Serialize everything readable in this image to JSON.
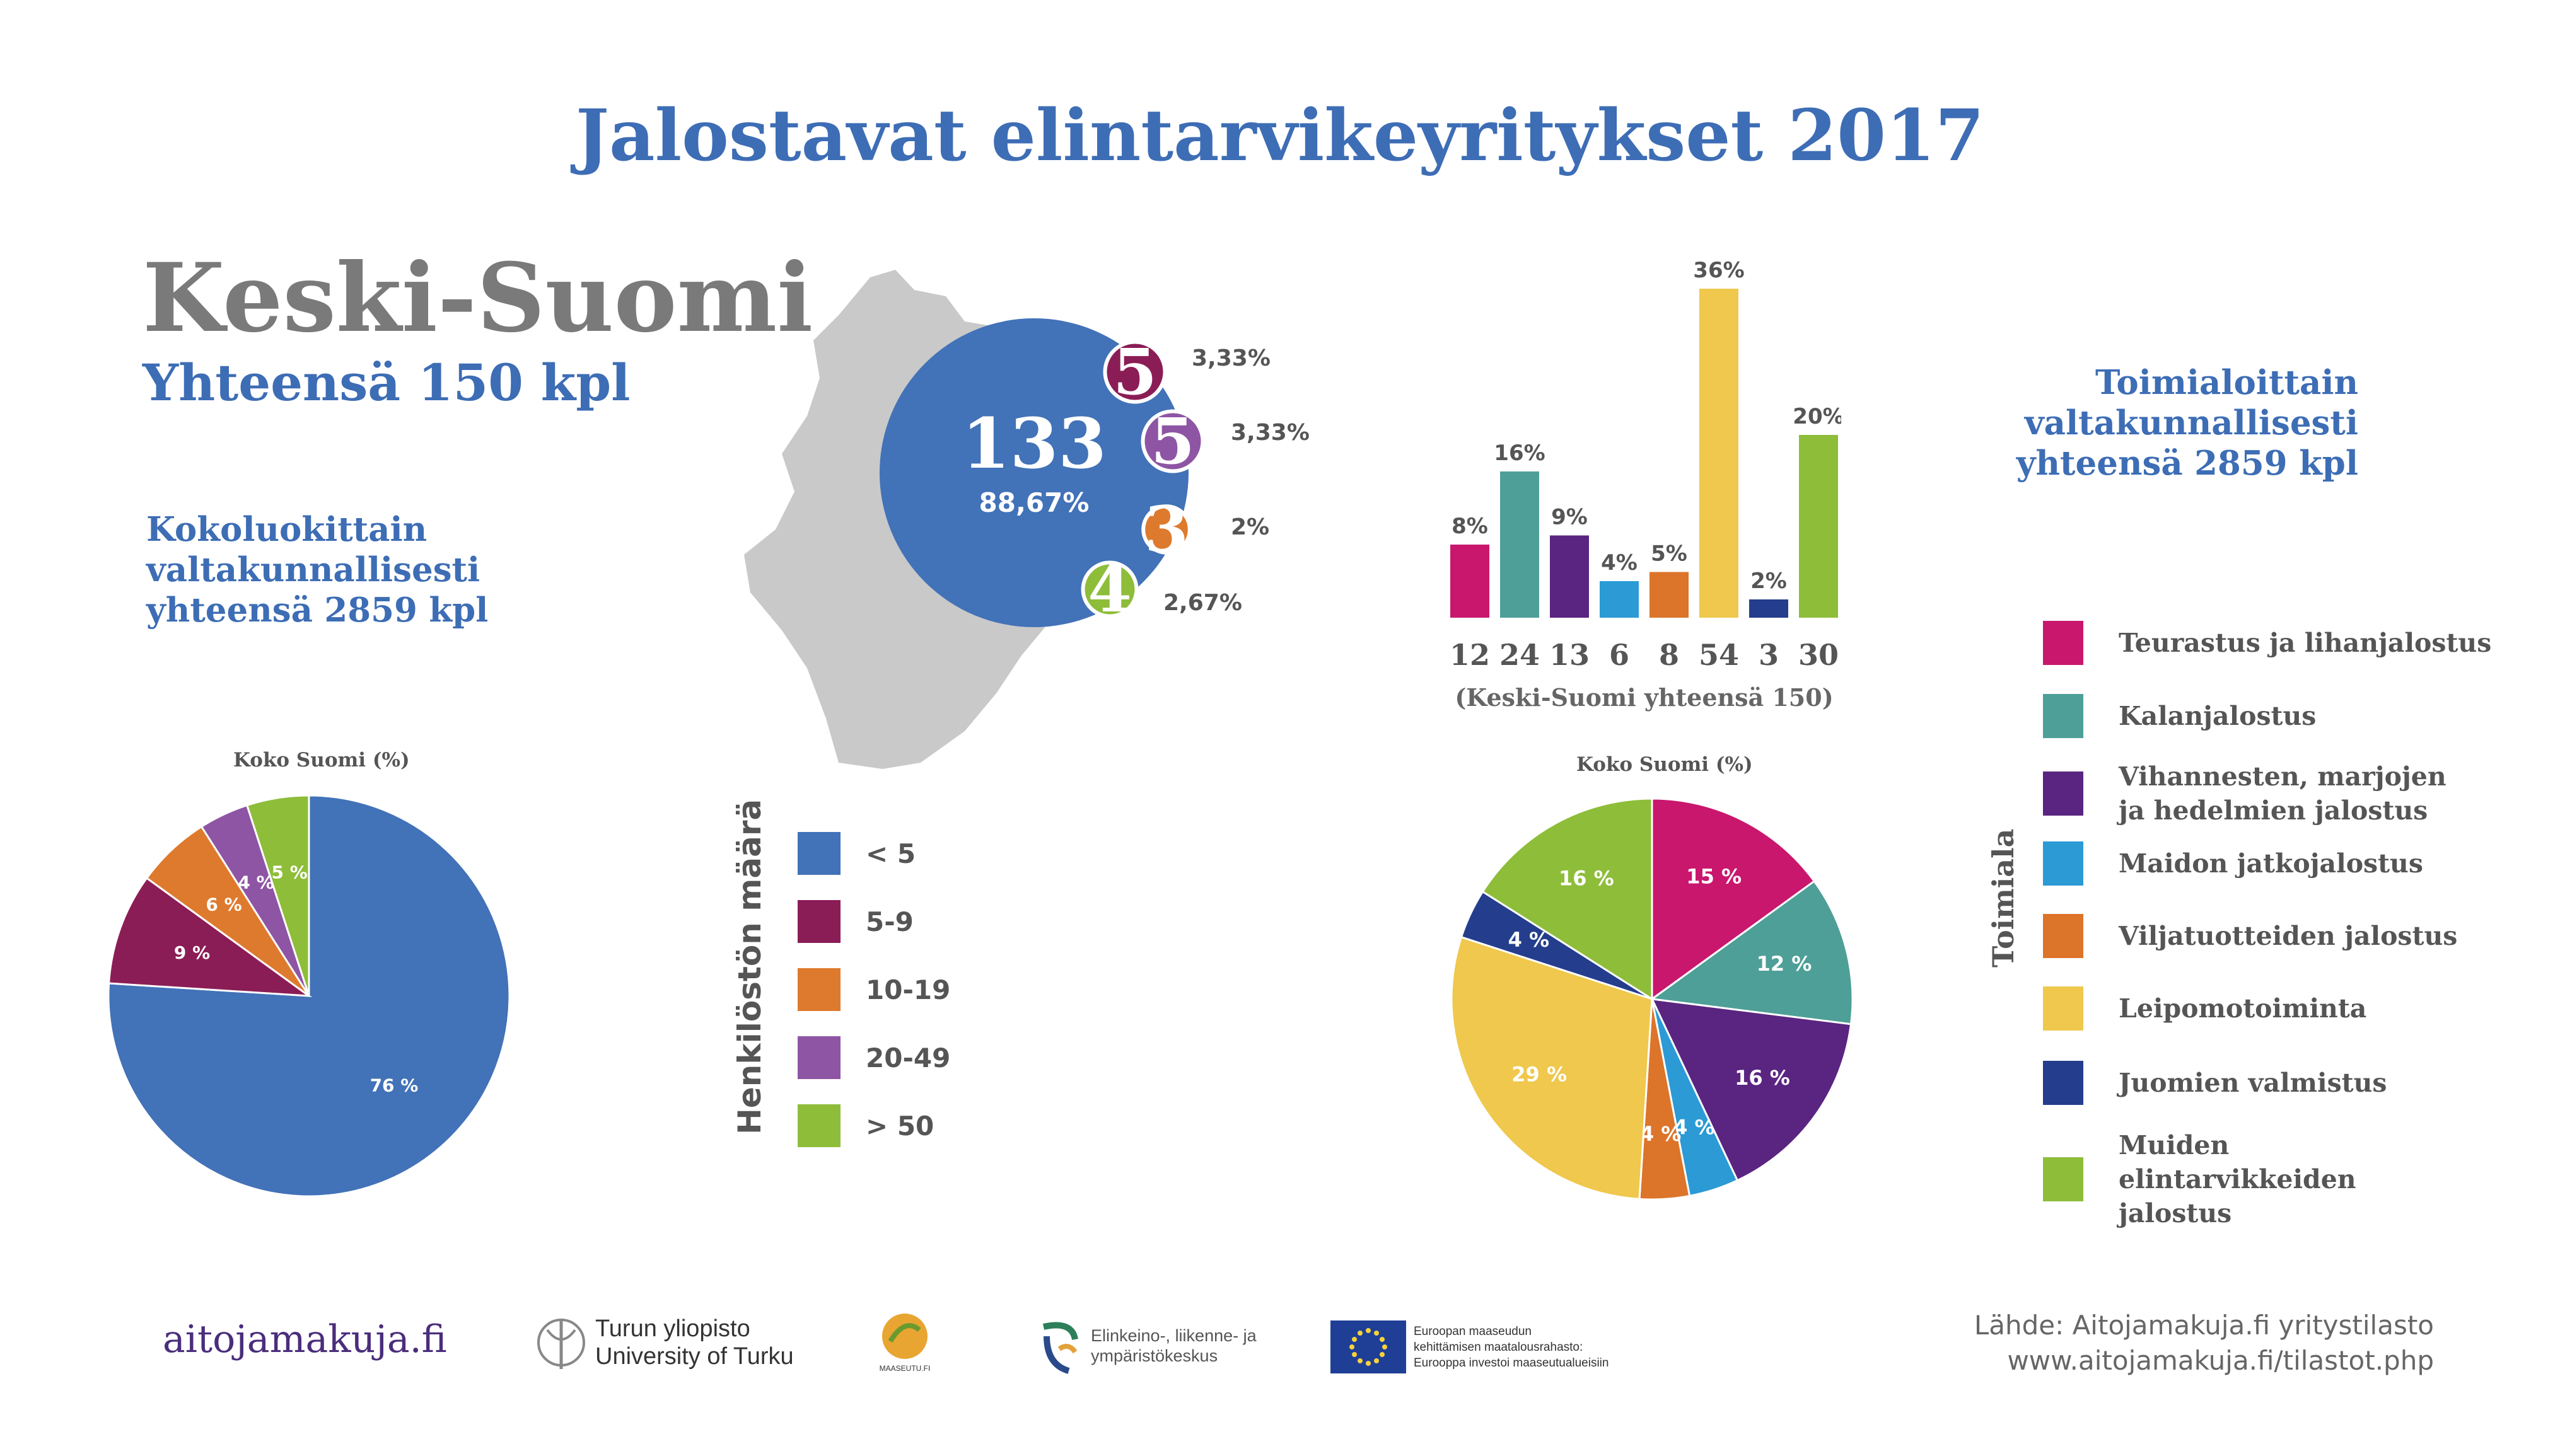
{
  "header": {
    "title": "Jalostavat elintarvikeyritykset  2017"
  },
  "region": {
    "name": "Keski-Suomi",
    "total": "Yhteensä 150 kpl"
  },
  "size_section": {
    "heading_lines": [
      "Kokoluokittain",
      "valtakunnallisesti",
      "yhteensä 2859 kpl"
    ]
  },
  "industry_section": {
    "heading_lines": [
      "Toimialoittain",
      "valtakunnallisesti",
      "yhteensä 2859 kpl"
    ]
  },
  "size_legend": {
    "title": "Henkilöstön määrä",
    "items": [
      {
        "label": "< 5",
        "color": "#4272b8"
      },
      {
        "label": "5-9",
        "color": "#8b1d56"
      },
      {
        "label": "10-19",
        "color": "#de7a2e"
      },
      {
        "label": "20-49",
        "color": "#8e55a4"
      },
      {
        "label": "> 50",
        "color": "#8ebd3a"
      }
    ]
  },
  "industry_legend": {
    "title": "Toimiala",
    "items": [
      {
        "label": "Teurastus ja lihanjalostus",
        "color": "#c9176e"
      },
      {
        "label": "Kalanjalostus",
        "color": "#4e9f97"
      },
      {
        "label": "Vihannesten, marjojen ja hedelmien jalostus",
        "color": "#5a2481"
      },
      {
        "label": "Maidon jatkojalostus",
        "color": "#2b9ad5"
      },
      {
        "label": "Viljatuotteiden jalostus",
        "color": "#dc742a"
      },
      {
        "label": "Leipomotoiminta",
        "color": "#efc84d"
      },
      {
        "label": "Juomien valmistus",
        "color": "#243e8d"
      },
      {
        "label": "Muiden elintarvikkeiden jalostus",
        "color": "#8ebd3a"
      }
    ]
  },
  "footer": {
    "site": "aitojamakuja.fi",
    "source_lines": [
      "Lähde: Aitojamakuja.fi yritystilasto",
      "www.aitojamakuja.fi/tilastot.php"
    ],
    "logos": {
      "utu": [
        "Turun yliopisto",
        "University of Turku"
      ],
      "maaseutu": "MAASEUTU.FI",
      "ely": [
        "Elinkeino-, liikenne- ja",
        "ympäristökeskus"
      ],
      "eu": [
        "Euroopan maaseudun",
        "kehittämisen maatalousrahasto:",
        "Eurooppa investoi maaseutualueisiin"
      ]
    }
  },
  "chart_data": [
    {
      "type": "pie",
      "title": "Koko Suomi (%)",
      "labels": [
        "< 5",
        "5-9",
        "10-19",
        "20-49",
        "> 50"
      ],
      "values": [
        76,
        9,
        6,
        4,
        5
      ],
      "value_labels": [
        "76 %",
        "9 %",
        "6 %",
        "4 %",
        "5 %"
      ],
      "colors": [
        "#4272b8",
        "#8b1d56",
        "#de7a2e",
        "#8e55a4",
        "#8ebd3a"
      ]
    },
    {
      "type": "bubble",
      "labels": [
        "< 5",
        "5-9",
        "20-49",
        "10-19",
        "> 50"
      ],
      "values": [
        133,
        5,
        5,
        3,
        4
      ],
      "percent_labels": [
        "88,67%",
        "3,33%",
        "3,33%",
        "2%",
        "2,67%"
      ],
      "colors": [
        "#4272b8",
        "#8b1d56",
        "#8e55a4",
        "#de7a2e",
        "#8ebd3a"
      ]
    },
    {
      "type": "bar",
      "categories": [
        "Teurastus ja lihanjalostus",
        "Kalanjalostus",
        "Vihannesten, marjojen ja hedelmien jalostus",
        "Maidon jatkojalostus",
        "Viljatuotteiden jalostus",
        "Leipomotoiminta",
        "Juomien valmistus",
        "Muiden elintarvikkeiden jalostus"
      ],
      "values": [
        8,
        16,
        9,
        4,
        5,
        36,
        2,
        20
      ],
      "value_labels": [
        "8%",
        "16%",
        "9%",
        "4%",
        "5%",
        "36%",
        "2%",
        "20%"
      ],
      "counts": [
        "12",
        "24",
        "13",
        "6",
        "8",
        "54",
        "3",
        "30"
      ],
      "xlabel": "(Keski-Suomi yhteensä 150)",
      "colors": [
        "#c9176e",
        "#4e9f97",
        "#5a2481",
        "#2b9ad5",
        "#dc742a",
        "#efc84d",
        "#243e8d",
        "#8ebd3a"
      ]
    },
    {
      "type": "pie",
      "title": "Koko Suomi (%)",
      "labels": [
        "Teurastus ja lihanjalostus",
        "Kalanjalostus",
        "Vihannesten, marjojen ja hedelmien jalostus",
        "Maidon jatkojalostus",
        "Viljatuotteiden jalostus",
        "Leipomotoiminta",
        "Juomien valmistus",
        "Muiden elintarvikkeiden jalostus"
      ],
      "values": [
        15,
        12,
        16,
        4,
        4,
        29,
        4,
        16
      ],
      "value_labels": [
        "15 %",
        "12 %",
        "16 %",
        "4 %",
        "4 %",
        "29 %",
        "4 %",
        "16 %"
      ],
      "colors": [
        "#c9176e",
        "#4e9f97",
        "#5a2481",
        "#2b9ad5",
        "#dc742a",
        "#efc84d",
        "#243e8d",
        "#8ebd3a"
      ]
    }
  ]
}
